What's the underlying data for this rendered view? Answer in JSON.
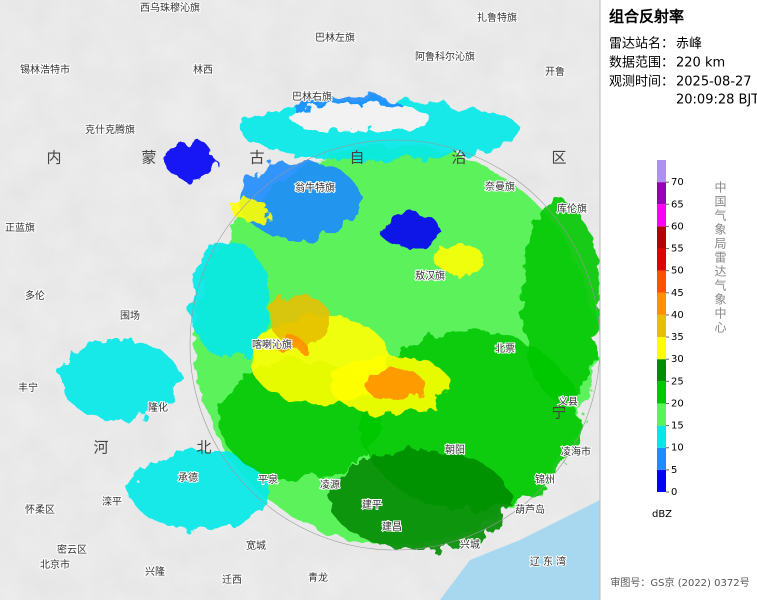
{
  "panel": {
    "title": "组合反射率",
    "station_label": "雷达站名：",
    "station": "赤峰",
    "range_label": "数据范围：",
    "range": "220 km",
    "time_label": "观测时间：",
    "date": "2025-08-27",
    "time": "20:09:28 BJT",
    "agency": "中国气象局雷达气象中心",
    "footer": "审图号：GS京 (2022) 0372号"
  },
  "legend": {
    "unit": "dBZ",
    "ticks": [
      0,
      5,
      10,
      15,
      20,
      25,
      30,
      35,
      40,
      45,
      50,
      55,
      60,
      65,
      70
    ],
    "colors": [
      "#0000f6",
      "#1e8cff",
      "#00e8e8",
      "#5cf25c",
      "#00c800",
      "#008c00",
      "#ffff00",
      "#e6c000",
      "#ff9000",
      "#ff5000",
      "#e00000",
      "#b40000",
      "#ff00f0",
      "#9600b4",
      "#ad90f0"
    ]
  },
  "map_labels": [
    "西乌珠穆沁旗",
    "扎鲁特旗",
    "巴林左旗",
    "阿鲁科尔沁旗",
    "锡林浩特市",
    "林西",
    "开鲁",
    "巴林右旗",
    "克什克腾旗",
    "翁牛特旗",
    "奈曼旗",
    "库伦旗",
    "正蓝旗",
    "敖汉旗",
    "多伦",
    "围场",
    "喀喇沁旗",
    "北票",
    "丰宁",
    "隆化",
    "义县",
    "承德",
    "滦平",
    "平泉",
    "凌源",
    "建平",
    "朝阳",
    "怀柔区",
    "密云区",
    "北京市",
    "兴隆",
    "迁西",
    "青龙",
    "宽城",
    "建昌",
    "兴城",
    "葫芦岛",
    "凌海市",
    "锦州",
    "辽 东 湾"
  ],
  "region_labels": [
    "内",
    "蒙",
    "古",
    "自",
    "治",
    "区",
    "河",
    "北",
    "宁"
  ]
}
